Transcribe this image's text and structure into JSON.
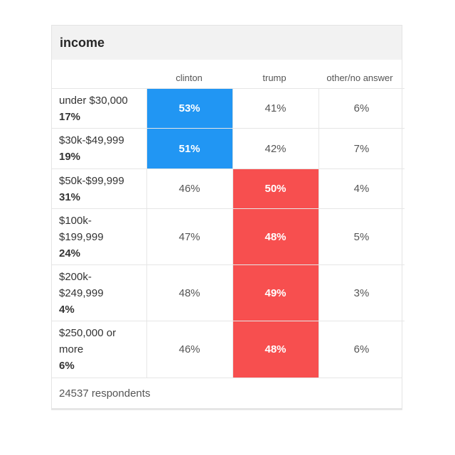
{
  "chart_data": {
    "type": "table",
    "title": "income",
    "columns": [
      "clinton",
      "trump",
      "other/no answer"
    ],
    "rows": [
      {
        "label": "under $30,000",
        "share": "17%",
        "values": [
          "53%",
          "41%",
          "6%"
        ],
        "winner": 0
      },
      {
        "label": "$30k-$49,999",
        "share": "19%",
        "values": [
          "51%",
          "42%",
          "7%"
        ],
        "winner": 0
      },
      {
        "label": "$50k-$99,999",
        "share": "31%",
        "values": [
          "46%",
          "50%",
          "4%"
        ],
        "winner": 1
      },
      {
        "label": "$100k-\n$199,999",
        "share": "24%",
        "values": [
          "47%",
          "48%",
          "5%"
        ],
        "winner": 1
      },
      {
        "label": "$200k-\n$249,999",
        "share": "4%",
        "values": [
          "48%",
          "49%",
          "3%"
        ],
        "winner": 1
      },
      {
        "label": "$250,000 or\nmore",
        "share": "6%",
        "values": [
          "46%",
          "48%",
          "6%"
        ],
        "winner": 1
      }
    ],
    "footer": "24537 respondents",
    "colors": {
      "clinton": "#2196f3",
      "trump": "#f74f4f"
    }
  }
}
